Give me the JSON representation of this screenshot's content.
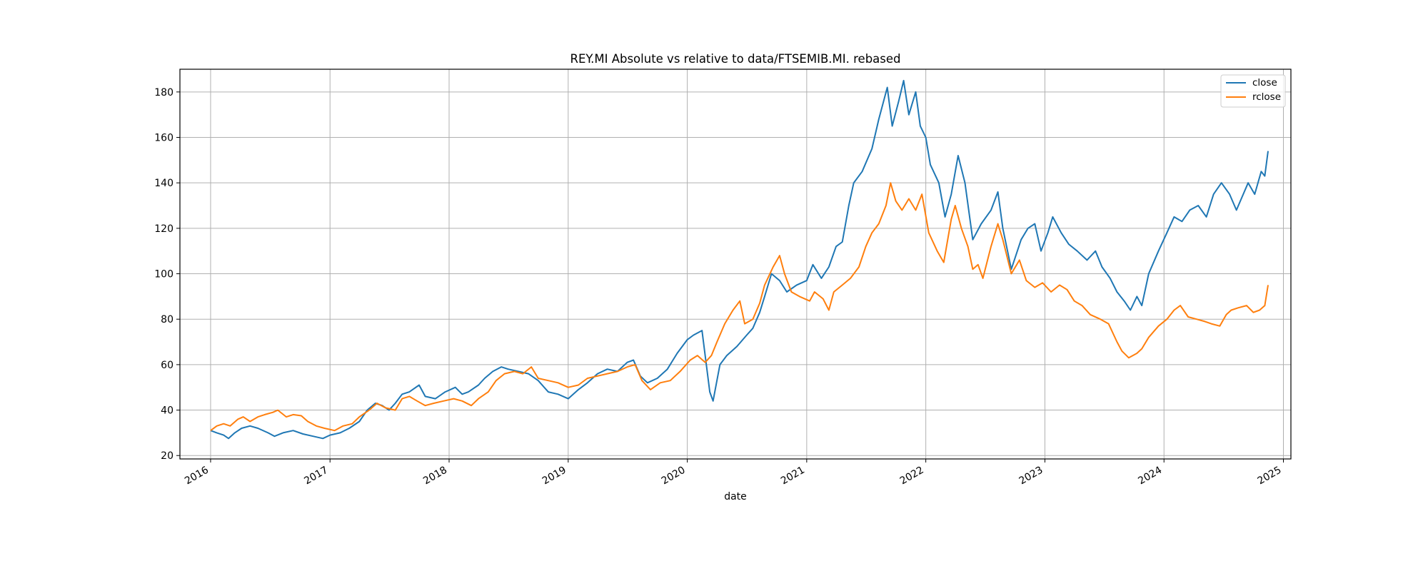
{
  "chart_data": {
    "type": "line",
    "title": "REY.MI Absolute vs relative to data/FTSEMIB.MI. rebased",
    "xlabel": "date",
    "ylabel": "",
    "xlim": [
      "2015-09-29",
      "2025-01-24"
    ],
    "ylim": [
      18.5,
      190
    ],
    "x_ticks": [
      "2016",
      "2017",
      "2018",
      "2019",
      "2020",
      "2021",
      "2022",
      "2023",
      "2024",
      "2025"
    ],
    "y_ticks": [
      20,
      40,
      60,
      80,
      100,
      120,
      140,
      160,
      180
    ],
    "grid": true,
    "legend_position": "top-right",
    "series": [
      {
        "name": "close",
        "color": "#1f77b4",
        "points": [
          [
            "2016-01-01",
            31
          ],
          [
            "2016-01-20",
            30
          ],
          [
            "2016-02-10",
            29
          ],
          [
            "2016-02-25",
            27.5
          ],
          [
            "2016-03-15",
            30
          ],
          [
            "2016-04-05",
            32
          ],
          [
            "2016-05-01",
            33
          ],
          [
            "2016-05-25",
            32
          ],
          [
            "2016-06-25",
            30
          ],
          [
            "2016-07-15",
            28.5
          ],
          [
            "2016-08-10",
            30
          ],
          [
            "2016-09-10",
            31
          ],
          [
            "2016-10-10",
            29.5
          ],
          [
            "2016-11-10",
            28.5
          ],
          [
            "2016-12-10",
            27.5
          ],
          [
            "2017-01-01",
            29
          ],
          [
            "2017-02-01",
            30
          ],
          [
            "2017-03-01",
            32
          ],
          [
            "2017-04-01",
            35
          ],
          [
            "2017-04-25",
            40
          ],
          [
            "2017-05-20",
            43
          ],
          [
            "2017-06-10",
            42
          ],
          [
            "2017-07-01",
            40
          ],
          [
            "2017-07-20",
            43
          ],
          [
            "2017-08-10",
            47
          ],
          [
            "2017-09-01",
            48
          ],
          [
            "2017-10-01",
            51
          ],
          [
            "2017-10-20",
            46
          ],
          [
            "2017-11-20",
            45
          ],
          [
            "2017-12-20",
            48
          ],
          [
            "2018-01-20",
            50
          ],
          [
            "2018-02-10",
            47
          ],
          [
            "2018-03-01",
            48
          ],
          [
            "2018-04-01",
            51
          ],
          [
            "2018-04-20",
            54
          ],
          [
            "2018-05-15",
            57
          ],
          [
            "2018-06-10",
            59
          ],
          [
            "2018-07-01",
            58
          ],
          [
            "2018-08-01",
            57
          ],
          [
            "2018-09-01",
            56
          ],
          [
            "2018-10-01",
            53
          ],
          [
            "2018-11-01",
            48
          ],
          [
            "2018-12-01",
            47
          ],
          [
            "2019-01-01",
            45
          ],
          [
            "2019-02-01",
            49
          ],
          [
            "2019-03-01",
            52
          ],
          [
            "2019-04-01",
            56
          ],
          [
            "2019-05-01",
            58
          ],
          [
            "2019-06-01",
            57
          ],
          [
            "2019-07-01",
            61
          ],
          [
            "2019-07-20",
            62
          ],
          [
            "2019-08-10",
            55
          ],
          [
            "2019-09-01",
            52
          ],
          [
            "2019-10-01",
            54
          ],
          [
            "2019-11-01",
            58
          ],
          [
            "2019-12-01",
            65
          ],
          [
            "2020-01-01",
            71
          ],
          [
            "2020-01-20",
            73
          ],
          [
            "2020-02-15",
            75
          ],
          [
            "2020-03-10",
            48
          ],
          [
            "2020-03-20",
            44
          ],
          [
            "2020-04-10",
            60
          ],
          [
            "2020-05-01",
            64
          ],
          [
            "2020-06-01",
            68
          ],
          [
            "2020-07-01",
            73
          ],
          [
            "2020-07-20",
            76
          ],
          [
            "2020-08-10",
            83
          ],
          [
            "2020-08-25",
            90
          ],
          [
            "2020-09-15",
            100
          ],
          [
            "2020-10-10",
            97
          ],
          [
            "2020-11-01",
            92
          ],
          [
            "2020-12-01",
            95
          ],
          [
            "2021-01-01",
            97
          ],
          [
            "2021-01-20",
            104
          ],
          [
            "2021-02-15",
            98
          ],
          [
            "2021-03-10",
            103
          ],
          [
            "2021-04-01",
            112
          ],
          [
            "2021-04-20",
            114
          ],
          [
            "2021-05-10",
            130
          ],
          [
            "2021-05-25",
            140
          ],
          [
            "2021-06-20",
            145
          ],
          [
            "2021-07-20",
            155
          ],
          [
            "2021-08-10",
            168
          ],
          [
            "2021-09-05",
            182
          ],
          [
            "2021-09-20",
            165
          ],
          [
            "2021-10-10",
            176
          ],
          [
            "2021-10-25",
            185
          ],
          [
            "2021-11-10",
            170
          ],
          [
            "2021-12-01",
            180
          ],
          [
            "2021-12-15",
            165
          ],
          [
            "2022-01-01",
            160
          ],
          [
            "2022-01-15",
            148
          ],
          [
            "2022-02-10",
            140
          ],
          [
            "2022-03-01",
            125
          ],
          [
            "2022-03-20",
            135
          ],
          [
            "2022-04-10",
            152
          ],
          [
            "2022-05-01",
            140
          ],
          [
            "2022-05-25",
            115
          ],
          [
            "2022-06-20",
            122
          ],
          [
            "2022-07-20",
            128
          ],
          [
            "2022-08-10",
            136
          ],
          [
            "2022-08-25",
            120
          ],
          [
            "2022-09-20",
            102
          ],
          [
            "2022-10-20",
            115
          ],
          [
            "2022-11-10",
            120
          ],
          [
            "2022-12-01",
            122
          ],
          [
            "2022-12-20",
            110
          ],
          [
            "2023-01-10",
            118
          ],
          [
            "2023-01-25",
            125
          ],
          [
            "2023-02-20",
            118
          ],
          [
            "2023-03-15",
            113
          ],
          [
            "2023-04-10",
            110
          ],
          [
            "2023-05-10",
            106
          ],
          [
            "2023-06-05",
            110
          ],
          [
            "2023-06-25",
            103
          ],
          [
            "2023-07-20",
            98
          ],
          [
            "2023-08-10",
            92
          ],
          [
            "2023-09-01",
            88
          ],
          [
            "2023-09-20",
            84
          ],
          [
            "2023-10-10",
            90
          ],
          [
            "2023-10-25",
            86
          ],
          [
            "2023-11-15",
            100
          ],
          [
            "2023-12-15",
            110
          ],
          [
            "2024-01-10",
            118
          ],
          [
            "2024-02-01",
            125
          ],
          [
            "2024-02-25",
            123
          ],
          [
            "2024-03-20",
            128
          ],
          [
            "2024-04-15",
            130
          ],
          [
            "2024-05-10",
            125
          ],
          [
            "2024-06-01",
            135
          ],
          [
            "2024-06-25",
            140
          ],
          [
            "2024-07-20",
            135
          ],
          [
            "2024-08-10",
            128
          ],
          [
            "2024-08-25",
            133
          ],
          [
            "2024-09-15",
            140
          ],
          [
            "2024-10-05",
            135
          ],
          [
            "2024-10-25",
            145
          ],
          [
            "2024-11-05",
            143
          ],
          [
            "2024-11-15",
            154
          ]
        ]
      },
      {
        "name": "rclose",
        "color": "#ff7f0e",
        "points": [
          [
            "2016-01-01",
            31
          ],
          [
            "2016-01-20",
            33
          ],
          [
            "2016-02-10",
            34
          ],
          [
            "2016-03-01",
            33
          ],
          [
            "2016-03-25",
            36
          ],
          [
            "2016-04-10",
            37
          ],
          [
            "2016-05-01",
            35
          ],
          [
            "2016-05-25",
            37
          ],
          [
            "2016-06-15",
            38
          ],
          [
            "2016-07-10",
            39
          ],
          [
            "2016-07-25",
            40
          ],
          [
            "2016-08-20",
            37
          ],
          [
            "2016-09-10",
            38
          ],
          [
            "2016-10-05",
            37.5
          ],
          [
            "2016-10-25",
            35
          ],
          [
            "2016-11-20",
            33
          ],
          [
            "2016-12-15",
            32
          ],
          [
            "2017-01-15",
            31
          ],
          [
            "2017-02-10",
            33
          ],
          [
            "2017-03-10",
            34
          ],
          [
            "2017-04-01",
            37
          ],
          [
            "2017-05-01",
            40
          ],
          [
            "2017-05-25",
            43
          ],
          [
            "2017-06-20",
            41
          ],
          [
            "2017-07-20",
            40
          ],
          [
            "2017-08-10",
            45
          ],
          [
            "2017-09-01",
            46
          ],
          [
            "2017-09-25",
            44
          ],
          [
            "2017-10-20",
            42
          ],
          [
            "2017-11-15",
            43
          ],
          [
            "2017-12-15",
            44
          ],
          [
            "2018-01-15",
            45
          ],
          [
            "2018-02-10",
            44
          ],
          [
            "2018-03-10",
            42
          ],
          [
            "2018-04-01",
            45
          ],
          [
            "2018-05-01",
            48
          ],
          [
            "2018-05-25",
            53
          ],
          [
            "2018-06-20",
            56
          ],
          [
            "2018-07-20",
            57
          ],
          [
            "2018-08-15",
            56
          ],
          [
            "2018-09-10",
            59
          ],
          [
            "2018-10-01",
            54
          ],
          [
            "2018-11-01",
            53
          ],
          [
            "2018-12-01",
            52
          ],
          [
            "2019-01-01",
            50
          ],
          [
            "2019-02-01",
            51
          ],
          [
            "2019-03-01",
            54
          ],
          [
            "2019-04-01",
            55
          ],
          [
            "2019-05-01",
            56
          ],
          [
            "2019-06-01",
            57
          ],
          [
            "2019-07-01",
            59
          ],
          [
            "2019-07-25",
            60
          ],
          [
            "2019-08-15",
            53
          ],
          [
            "2019-09-10",
            49
          ],
          [
            "2019-10-10",
            52
          ],
          [
            "2019-11-10",
            53
          ],
          [
            "2019-12-10",
            57
          ],
          [
            "2020-01-10",
            62
          ],
          [
            "2020-02-01",
            64
          ],
          [
            "2020-02-25",
            61
          ],
          [
            "2020-03-15",
            64
          ],
          [
            "2020-04-01",
            70
          ],
          [
            "2020-04-25",
            78
          ],
          [
            "2020-05-20",
            84
          ],
          [
            "2020-06-10",
            88
          ],
          [
            "2020-06-25",
            78
          ],
          [
            "2020-07-20",
            80
          ],
          [
            "2020-08-10",
            87
          ],
          [
            "2020-08-25",
            95
          ],
          [
            "2020-09-20",
            103
          ],
          [
            "2020-10-10",
            108
          ],
          [
            "2020-10-25",
            100
          ],
          [
            "2020-11-15",
            92
          ],
          [
            "2020-12-10",
            90
          ],
          [
            "2021-01-10",
            88
          ],
          [
            "2021-01-25",
            92
          ],
          [
            "2021-02-20",
            89
          ],
          [
            "2021-03-10",
            84
          ],
          [
            "2021-03-25",
            92
          ],
          [
            "2021-04-20",
            95
          ],
          [
            "2021-05-15",
            98
          ],
          [
            "2021-06-10",
            103
          ],
          [
            "2021-07-01",
            112
          ],
          [
            "2021-07-20",
            118
          ],
          [
            "2021-08-10",
            122
          ],
          [
            "2021-09-01",
            130
          ],
          [
            "2021-09-15",
            140
          ],
          [
            "2021-10-01",
            132
          ],
          [
            "2021-10-20",
            128
          ],
          [
            "2021-11-10",
            133
          ],
          [
            "2021-12-01",
            128
          ],
          [
            "2021-12-20",
            135
          ],
          [
            "2022-01-10",
            118
          ],
          [
            "2022-02-05",
            110
          ],
          [
            "2022-02-25",
            105
          ],
          [
            "2022-03-20",
            124
          ],
          [
            "2022-04-01",
            130
          ],
          [
            "2022-04-20",
            120
          ],
          [
            "2022-05-10",
            112
          ],
          [
            "2022-05-25",
            102
          ],
          [
            "2022-06-10",
            104
          ],
          [
            "2022-06-25",
            98
          ],
          [
            "2022-07-20",
            112
          ],
          [
            "2022-08-10",
            122
          ],
          [
            "2022-08-25",
            115
          ],
          [
            "2022-09-20",
            100
          ],
          [
            "2022-10-15",
            106
          ],
          [
            "2022-11-05",
            97
          ],
          [
            "2022-12-01",
            94
          ],
          [
            "2022-12-25",
            96
          ],
          [
            "2023-01-20",
            92
          ],
          [
            "2023-02-15",
            95
          ],
          [
            "2023-03-10",
            93
          ],
          [
            "2023-04-01",
            88
          ],
          [
            "2023-04-25",
            86
          ],
          [
            "2023-05-20",
            82
          ],
          [
            "2023-06-20",
            80
          ],
          [
            "2023-07-15",
            78
          ],
          [
            "2023-08-10",
            70
          ],
          [
            "2023-08-25",
            66
          ],
          [
            "2023-09-15",
            63
          ],
          [
            "2023-10-10",
            65
          ],
          [
            "2023-10-25",
            67
          ],
          [
            "2023-11-15",
            72
          ],
          [
            "2023-12-15",
            77
          ],
          [
            "2024-01-10",
            80
          ],
          [
            "2024-02-01",
            84
          ],
          [
            "2024-02-20",
            86
          ],
          [
            "2024-03-15",
            81
          ],
          [
            "2024-04-10",
            80
          ],
          [
            "2024-05-05",
            79
          ],
          [
            "2024-05-25",
            78
          ],
          [
            "2024-06-20",
            77
          ],
          [
            "2024-07-10",
            82
          ],
          [
            "2024-07-25",
            84
          ],
          [
            "2024-08-15",
            85
          ],
          [
            "2024-09-10",
            86
          ],
          [
            "2024-10-01",
            83
          ],
          [
            "2024-10-20",
            84
          ],
          [
            "2024-11-05",
            86
          ],
          [
            "2024-11-15",
            95
          ]
        ]
      }
    ]
  }
}
